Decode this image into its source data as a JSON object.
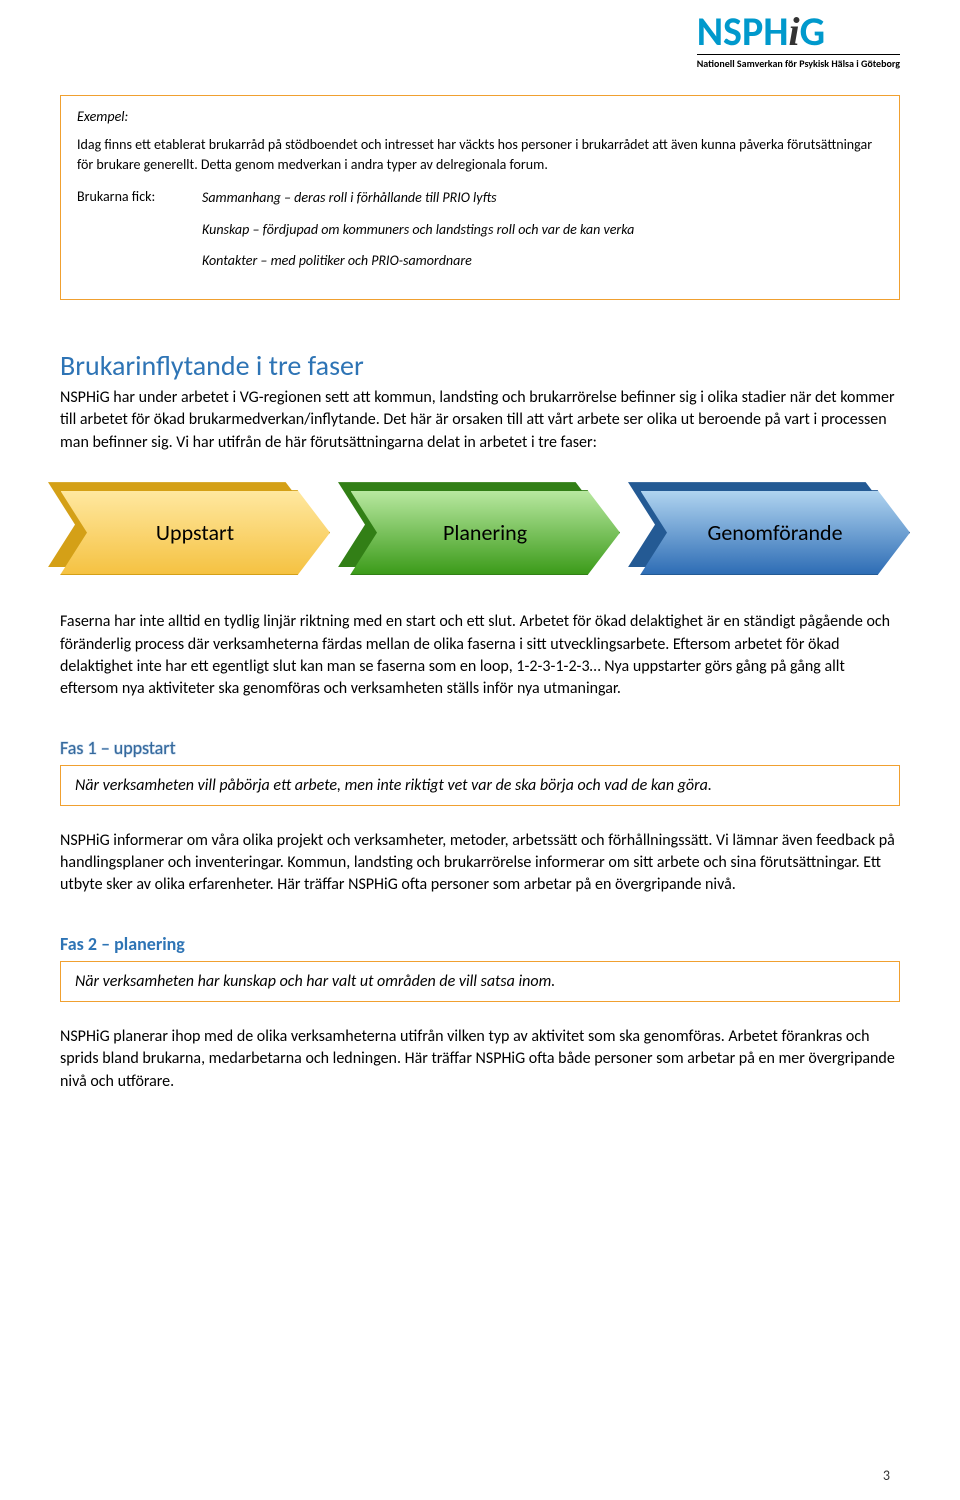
{
  "logo": {
    "title_pre": "NSPH",
    "title_i": "i",
    "title_post": "G",
    "subtitle": "Nationell Samverkan för Psykisk Hälsa i Göteborg",
    "color_main": "#0099cc",
    "color_sub": "#000000"
  },
  "exempel": {
    "label": "Exempel:",
    "intro": "Idag finns ett etablerat brukarråd på stödboendet och intresset har väckts hos personer i brukarrådet att även kunna påverka förutsättningar för brukare generellt. Detta genom medverkan i andra typer av delregionala forum.",
    "left_label": "Brukarna fick:",
    "lines": [
      "Sammanhang – deras roll i förhållande till PRIO lyfts",
      "Kunskap – fördjupad om kommuners och landstings roll och var de kan verka",
      "Kontakter – med politiker och PRIO-samordnare"
    ],
    "border_color": "#f0a030"
  },
  "section1": {
    "title": "Brukarinflytande i tre faser",
    "title_color": "#2e74b5",
    "p1": "NSPHiG har under arbetet i VG-regionen sett att kommun, landsting och brukarrörelse befinner sig i olika stadier när det kommer till arbetet för ökad brukarmedverkan/inflytande. Det här är orsaken till att vårt arbete ser olika ut beroende på vart i processen man befinner sig. Vi har utifrån de här förutsättningarna delat in arbetet i tre faser:"
  },
  "phases": {
    "items": [
      {
        "label": "Uppstart",
        "bg_color": "#ffd966",
        "fg_top": "#ffe8a0",
        "fg_bot": "#f5c242",
        "shadow": "#d4a017"
      },
      {
        "label": "Planering",
        "bg_color": "#6fbf44",
        "fg_top": "#b8e8a0",
        "fg_bot": "#3c9b1a",
        "shadow": "#327f16"
      },
      {
        "label": "Genomförande",
        "bg_color": "#4a90d9",
        "fg_top": "#b0d4f0",
        "fg_bot": "#2e6db5",
        "shadow": "#245a94"
      }
    ]
  },
  "p2": "Faserna har inte alltid en tydlig linjär riktning med en start och ett slut. Arbetet för ökad delaktighet är en ständigt pågående och föränderlig process där verksamheterna färdas mellan de olika faserna i sitt utvecklingsarbete. Eftersom arbetet för ökad delaktighet inte har ett egentligt slut kan man se faserna som en loop, 1-2-3-1-2-3… Nya uppstarter görs gång på gång allt eftersom nya aktiviteter ska genomföras och verksamheten ställs inför nya utmaningar.",
  "fas1": {
    "heading": "Fas 1 – uppstart",
    "italic_line": "När verksamheten vill påbörja ett arbete, men inte riktigt vet var de ska börja och vad de kan göra.",
    "body": "NSPHiG informerar om våra olika projekt och verksamheter, metoder, arbetssätt och förhållningssätt. Vi lämnar även feedback på handlingsplaner och inventeringar. Kommun, landsting och brukarrörelse informerar om sitt arbete och sina förutsättningar. Ett utbyte sker av olika erfarenheter. Här träffar NSPHiG ofta personer som arbetar på en övergripande nivå."
  },
  "fas2": {
    "heading": "Fas 2 – planering",
    "italic_line": "När verksamheten har kunskap och har valt ut områden de vill satsa inom.",
    "body": "NSPHiG planerar ihop med de olika verksamheterna utifrån vilken typ av aktivitet som ska genomföras. Arbetet förankras och sprids bland brukarna, medarbetarna och ledningen. Här träffar NSPHiG ofta både personer som arbetar på en mer övergripande nivå och utförare."
  },
  "page_number": "3"
}
